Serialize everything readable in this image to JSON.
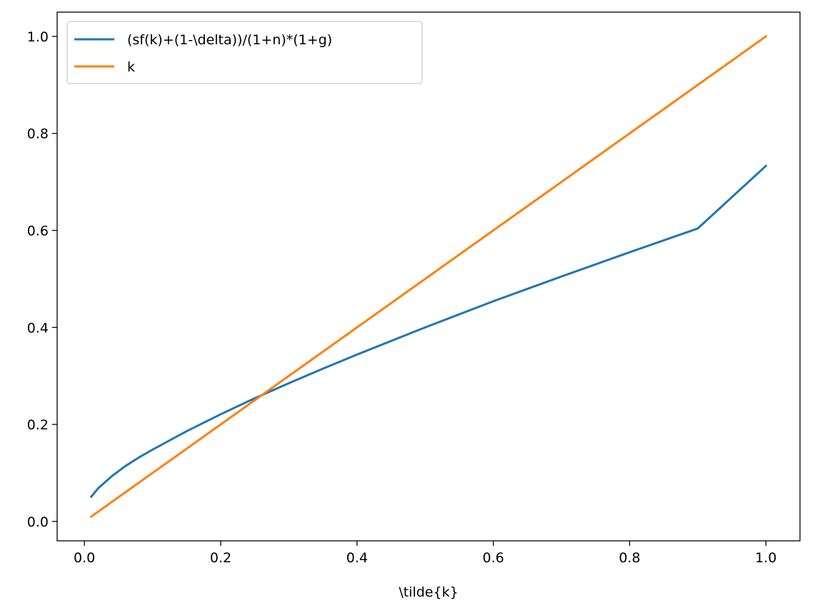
{
  "chart_data": {
    "type": "line",
    "title": "",
    "xlabel": "\\tilde{k}",
    "ylabel": "",
    "xlim": [
      -0.04,
      1.05
    ],
    "ylim": [
      -0.04,
      1.05
    ],
    "xticks": [
      "0.0",
      "0.2",
      "0.4",
      "0.6",
      "0.8",
      "1.0"
    ],
    "yticks": [
      "0.0",
      "0.2",
      "0.4",
      "0.6",
      "0.8",
      "1.0"
    ],
    "grid": false,
    "legend": "top-left",
    "series": [
      {
        "name": "(sf(k)+(1-\\delta))/(1+n)*(1+g)",
        "color": "#1f77b4",
        "x": [
          0.01,
          0.02,
          0.04,
          0.06,
          0.08,
          0.1,
          0.15,
          0.2,
          0.25,
          0.3,
          0.35,
          0.4,
          0.5,
          0.6,
          0.7,
          0.8,
          0.9,
          1.0
        ],
        "y": [
          0.051,
          0.068,
          0.093,
          0.114,
          0.132,
          0.148,
          0.186,
          0.221,
          0.254,
          0.285,
          0.315,
          0.344,
          0.4,
          0.454,
          0.505,
          0.555,
          0.604,
          0.733
        ]
      },
      {
        "name": "k",
        "color": "#ff7f0e",
        "x": [
          0.01,
          1.0
        ],
        "y": [
          0.01,
          1.0
        ]
      }
    ]
  }
}
